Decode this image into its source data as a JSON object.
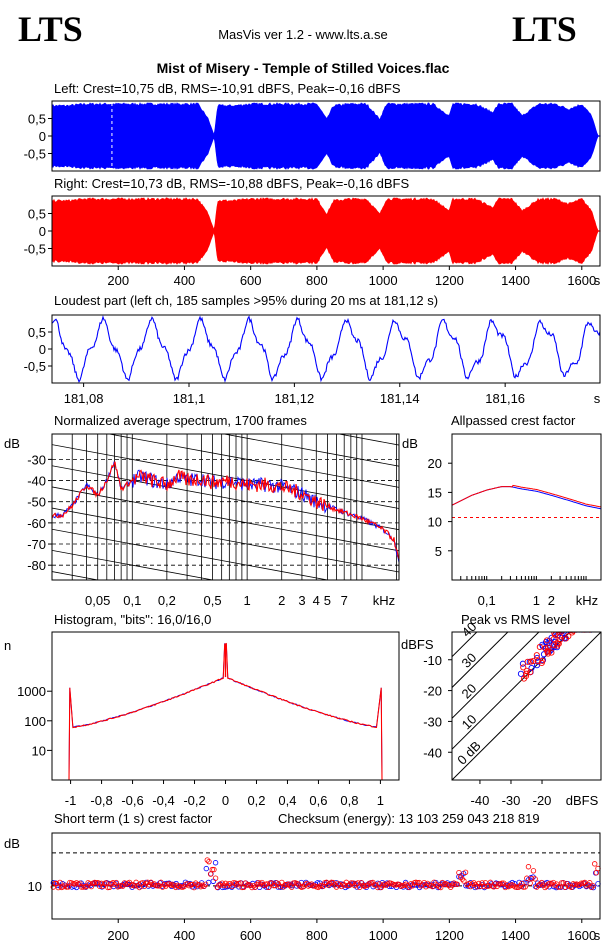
{
  "header": {
    "logo_left": "LTS",
    "logo_right": "LTS",
    "app_title": "MasVis ver 1.2 - www.lts.a.se",
    "file_title": "Mist of Misery - Temple of Stilled Voices.flac"
  },
  "colors": {
    "left": "#0000ff",
    "right": "#ff0000",
    "grid": "#000000"
  },
  "chart_data": [
    {
      "type": "area",
      "title": "Left: Crest=10,75 dB, RMS=-10,91 dBFS, Peak=-0,16 dBFS",
      "ylim": [
        -1,
        1
      ],
      "yticks": [
        "0,5",
        "0",
        "-0,5"
      ],
      "xlim": [
        0,
        1655
      ],
      "envelope_x": [
        0,
        50,
        100,
        150,
        200,
        250,
        300,
        350,
        400,
        440,
        470,
        490,
        500,
        550,
        600,
        650,
        700,
        750,
        800,
        830,
        850,
        900,
        950,
        990,
        1010,
        1050,
        1100,
        1150,
        1200,
        1210,
        1230,
        1280,
        1330,
        1350,
        1390,
        1420,
        1470,
        1520,
        1560,
        1600,
        1630,
        1648,
        1655
      ],
      "envelope_y": [
        0.9,
        0.9,
        0.95,
        0.95,
        0.95,
        0.95,
        0.95,
        0.95,
        0.95,
        0.95,
        0.55,
        0.02,
        0.9,
        0.9,
        0.95,
        0.95,
        0.95,
        0.95,
        0.95,
        0.5,
        0.9,
        0.95,
        0.95,
        0.5,
        0.95,
        0.95,
        0.95,
        0.95,
        0.6,
        0.95,
        0.95,
        0.95,
        0.7,
        0.95,
        0.95,
        0.6,
        0.95,
        0.95,
        0.8,
        0.95,
        0.6,
        0.02,
        0
      ]
    },
    {
      "type": "area",
      "title": "Right: Crest=10,73 dB, RMS=-10,88 dBFS, Peak=-0,16 dBFS",
      "ylim": [
        -1,
        1
      ],
      "yticks": [
        "0,5",
        "0",
        "-0,5"
      ],
      "xlabel": "s",
      "xlim": [
        0,
        1655
      ],
      "xticks": [
        200,
        400,
        600,
        800,
        1000,
        1200,
        1400,
        1600
      ],
      "envelope_x": [
        0,
        50,
        100,
        150,
        200,
        250,
        300,
        350,
        400,
        440,
        470,
        490,
        500,
        550,
        600,
        650,
        700,
        750,
        800,
        830,
        850,
        900,
        950,
        990,
        1010,
        1050,
        1100,
        1150,
        1200,
        1210,
        1230,
        1280,
        1330,
        1350,
        1390,
        1420,
        1470,
        1520,
        1560,
        1600,
        1630,
        1648,
        1655
      ],
      "envelope_y": [
        0.9,
        0.9,
        0.95,
        0.95,
        0.95,
        0.95,
        0.95,
        0.95,
        0.95,
        0.95,
        0.55,
        0.02,
        0.9,
        0.9,
        0.95,
        0.95,
        0.95,
        0.95,
        0.95,
        0.5,
        0.9,
        0.95,
        0.95,
        0.5,
        0.95,
        0.95,
        0.95,
        0.95,
        0.6,
        0.95,
        0.95,
        0.95,
        0.7,
        0.95,
        0.95,
        0.6,
        0.95,
        0.95,
        0.8,
        0.95,
        0.6,
        0.02,
        0
      ]
    },
    {
      "type": "line",
      "title": "Loudest part (left  ch, 185 samples >95% during 20 ms at 181,12 s)",
      "xlabel": "s",
      "xlim": [
        181.074,
        181.178
      ],
      "ylim": [
        -1,
        1
      ],
      "yticks": [
        "0,5",
        "0",
        "-0,5"
      ],
      "xticks": [
        "181,08",
        "181,1",
        "181,12",
        "181,14",
        "181,16"
      ],
      "xtick_values": [
        181.08,
        181.1,
        181.12,
        181.14,
        181.16
      ]
    },
    {
      "type": "line",
      "title": "Normalized average spectrum, 1700 frames",
      "ylabel": "dB",
      "xlabel": "kHz",
      "yticks": [
        -30,
        -40,
        -50,
        -60,
        -70,
        -80
      ],
      "ylim": [
        -87,
        -18
      ],
      "xlim": [
        0.02,
        21
      ],
      "xticks": [
        "0,05",
        "0,1",
        "0,2",
        "0,5",
        "1",
        "2",
        "3",
        "4",
        "5",
        "7"
      ],
      "xtick_values": [
        0.05,
        0.1,
        0.2,
        0.5,
        1,
        2,
        3,
        4,
        5,
        7
      ],
      "series": [
        {
          "freq_khz": [
            0.02,
            0.025,
            0.03,
            0.04,
            0.05,
            0.06,
            0.07,
            0.08,
            0.1,
            0.12,
            0.15,
            0.2,
            0.25,
            0.3,
            0.4,
            0.5,
            0.7,
            1,
            1.5,
            2,
            3,
            4,
            5,
            7,
            10,
            13,
            16,
            19,
            21
          ],
          "db": [
            -57,
            -56,
            -52,
            -42,
            -47,
            -40,
            -31,
            -44,
            -40,
            -38,
            -40,
            -42,
            -38,
            -40,
            -39,
            -41,
            -40,
            -42,
            -42,
            -43,
            -46,
            -50,
            -52,
            -55,
            -58,
            -61,
            -64,
            -68,
            -78
          ]
        }
      ]
    },
    {
      "type": "line",
      "title": "Allpassed crest factor",
      "ylabel": "dB",
      "xlabel": "kHz",
      "yticks": [
        20,
        15,
        10,
        5
      ],
      "ylim": [
        0,
        25
      ],
      "xlim": [
        0.02,
        20
      ],
      "xticks": [
        "0,1",
        "1",
        "2"
      ],
      "xtick_values": [
        0.1,
        1,
        2
      ],
      "reference_db": 10.7,
      "series": [
        {
          "freq_khz": [
            0.02,
            0.05,
            0.1,
            0.2,
            0.3,
            0.5,
            1,
            2,
            5,
            10,
            20
          ],
          "db": [
            12.8,
            14.5,
            15.4,
            16,
            16,
            15.6,
            15.2,
            14.5,
            13.5,
            12.7,
            12.2
          ]
        }
      ]
    },
    {
      "type": "line",
      "title": "Histogram, \"bits\": 16,0/16,0",
      "ylabel": "n",
      "yticks": [
        "1000",
        "100",
        "10"
      ],
      "ylim": [
        1,
        100000
      ],
      "xlim": [
        -1.12,
        1.12
      ],
      "xticks": [
        "-1",
        "-0,8",
        "-0,6",
        "-0,4",
        "-0,2",
        "0",
        "0,2",
        "0,4",
        "0,6",
        "0,8",
        "1"
      ],
      "xtick_values": [
        -1,
        -0.8,
        -0.6,
        -0.4,
        -0.2,
        0,
        0.2,
        0.4,
        0.6,
        0.8,
        1
      ]
    },
    {
      "type": "scatter",
      "title": "Peak vs RMS level",
      "ylabel": "dBFS",
      "xlabel": "dBFS",
      "yticks": [
        -10,
        -20,
        -30,
        -40
      ],
      "ylim": [
        -49,
        -1
      ],
      "xlim": [
        -49,
        -1
      ],
      "xticks": [
        -40,
        -30,
        -20
      ],
      "diagonal_labels": [
        "40",
        "30",
        "20",
        "10",
        "0 dB"
      ],
      "diagonal_offsets": [
        40,
        30,
        20,
        10,
        0
      ]
    },
    {
      "type": "scatter",
      "title": "Short term (1 s) crest factor",
      "checksum": "Checksum (energy):  13 103 259 043 218 819",
      "ylabel": "dB",
      "xlabel": "s",
      "ylim": [
        0,
        26
      ],
      "yticks": [
        "10"
      ],
      "xlim": [
        0,
        1655
      ],
      "xticks": [
        200,
        400,
        600,
        800,
        1000,
        1200,
        1400,
        1600
      ],
      "reference_lines_db": [
        10,
        20
      ]
    }
  ]
}
